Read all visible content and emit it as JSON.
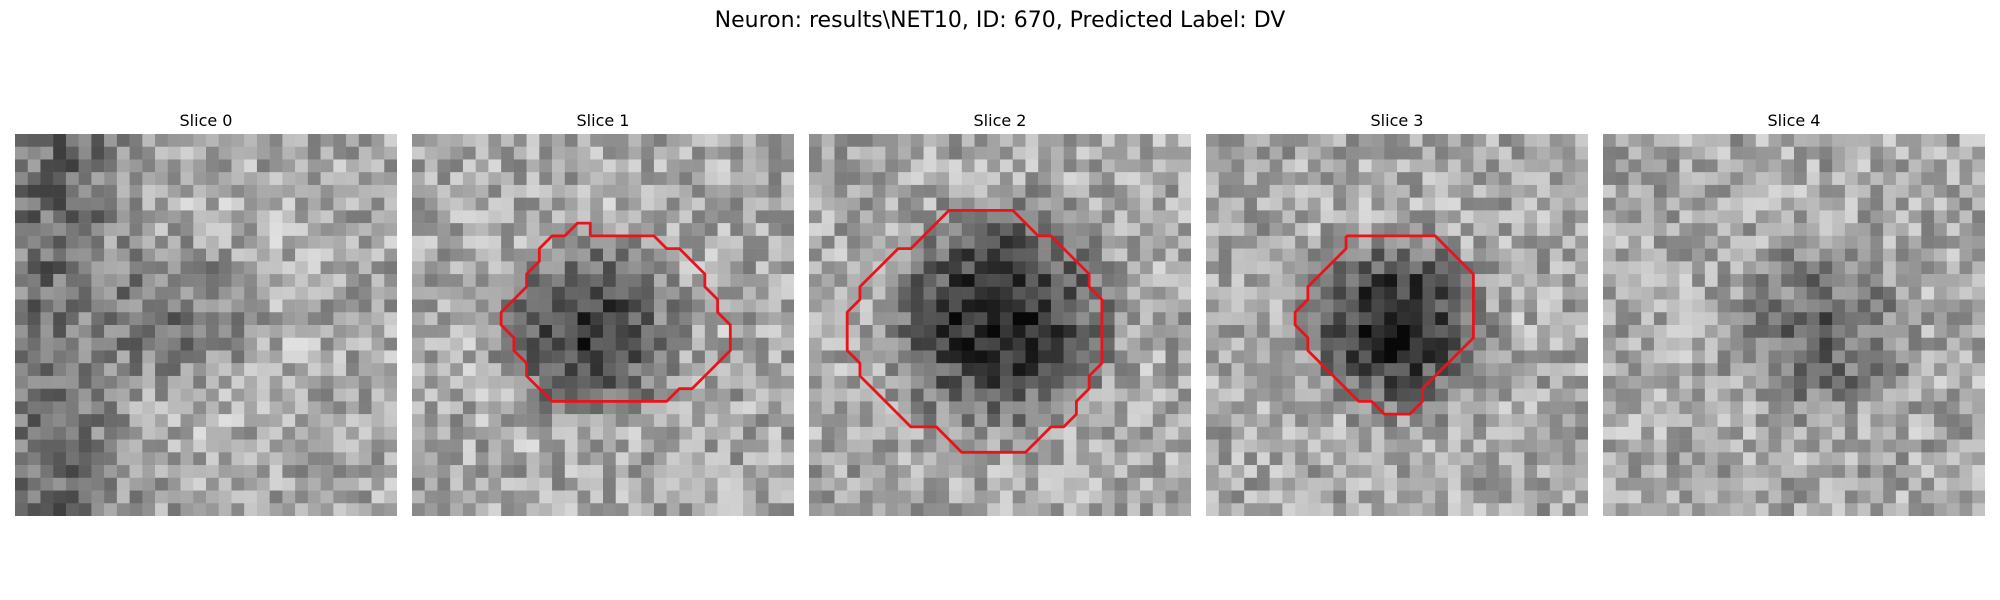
{
  "figure": {
    "title": "Neuron: results\\NET10, ID: 670, Predicted Label: DV"
  },
  "colors": {
    "contour": "#e8141c",
    "background": "#ffffff"
  },
  "slices": [
    {
      "title": "Slice 0",
      "seed": 11,
      "blob": [
        0.45,
        0.48,
        0.22,
        0.18,
        0.22
      ],
      "shadow_left": true,
      "contour": []
    },
    {
      "title": "Slice 1",
      "seed": 23,
      "blob": [
        0.47,
        0.52,
        0.24,
        0.45,
        0.26
      ],
      "shadow_left": false,
      "contour": [
        [
          14,
          8
        ],
        [
          19,
          8
        ],
        [
          20,
          9
        ],
        [
          21,
          9
        ],
        [
          22,
          10
        ],
        [
          23,
          11
        ],
        [
          23,
          12
        ],
        [
          24,
          13
        ],
        [
          24,
          14
        ],
        [
          25,
          15
        ],
        [
          25,
          16
        ],
        [
          25,
          17
        ],
        [
          24,
          18
        ],
        [
          23,
          19
        ],
        [
          22,
          20
        ],
        [
          21,
          20
        ],
        [
          20,
          21
        ],
        [
          19,
          21
        ],
        [
          18,
          21
        ],
        [
          17,
          21
        ],
        [
          16,
          21
        ],
        [
          15,
          21
        ],
        [
          14,
          21
        ],
        [
          13,
          21
        ],
        [
          12,
          21
        ],
        [
          11,
          21
        ],
        [
          10,
          20
        ],
        [
          9,
          19
        ],
        [
          9,
          18
        ],
        [
          8,
          17
        ],
        [
          8,
          16
        ],
        [
          7,
          15
        ],
        [
          7,
          14
        ],
        [
          8,
          13
        ],
        [
          9,
          12
        ],
        [
          9,
          11
        ],
        [
          10,
          10
        ],
        [
          10,
          9
        ],
        [
          11,
          8
        ],
        [
          12,
          8
        ],
        [
          13,
          7
        ],
        [
          14,
          7
        ],
        [
          14,
          8
        ]
      ]
    },
    {
      "title": "Slice 2",
      "seed": 37,
      "blob": [
        0.5,
        0.48,
        0.3,
        0.55,
        0.3
      ],
      "shadow_left": false,
      "contour": [
        [
          12,
          6
        ],
        [
          16,
          6
        ],
        [
          17,
          7
        ],
        [
          18,
          8
        ],
        [
          19,
          8
        ],
        [
          20,
          9
        ],
        [
          21,
          10
        ],
        [
          22,
          11
        ],
        [
          22,
          12
        ],
        [
          23,
          13
        ],
        [
          23,
          14
        ],
        [
          23,
          15
        ],
        [
          23,
          16
        ],
        [
          23,
          17
        ],
        [
          23,
          18
        ],
        [
          22,
          19
        ],
        [
          22,
          20
        ],
        [
          21,
          21
        ],
        [
          21,
          22
        ],
        [
          20,
          23
        ],
        [
          19,
          23
        ],
        [
          18,
          24
        ],
        [
          17,
          25
        ],
        [
          16,
          25
        ],
        [
          15,
          25
        ],
        [
          14,
          25
        ],
        [
          13,
          25
        ],
        [
          12,
          25
        ],
        [
          11,
          24
        ],
        [
          10,
          23
        ],
        [
          9,
          23
        ],
        [
          8,
          23
        ],
        [
          7,
          22
        ],
        [
          6,
          21
        ],
        [
          5,
          20
        ],
        [
          4,
          19
        ],
        [
          4,
          18
        ],
        [
          3,
          17
        ],
        [
          3,
          16
        ],
        [
          3,
          15
        ],
        [
          3,
          14
        ],
        [
          4,
          13
        ],
        [
          4,
          12
        ],
        [
          5,
          11
        ],
        [
          6,
          10
        ],
        [
          7,
          9
        ],
        [
          8,
          9
        ],
        [
          9,
          8
        ],
        [
          10,
          7
        ],
        [
          11,
          6
        ],
        [
          12,
          6
        ]
      ]
    },
    {
      "title": "Slice 3",
      "seed": 53,
      "blob": [
        0.5,
        0.5,
        0.24,
        0.55,
        0.26
      ],
      "shadow_left": false,
      "contour": [
        [
          11,
          8
        ],
        [
          18,
          8
        ],
        [
          19,
          9
        ],
        [
          20,
          10
        ],
        [
          21,
          11
        ],
        [
          21,
          12
        ],
        [
          21,
          13
        ],
        [
          21,
          14
        ],
        [
          21,
          15
        ],
        [
          21,
          16
        ],
        [
          20,
          17
        ],
        [
          19,
          18
        ],
        [
          18,
          19
        ],
        [
          17,
          20
        ],
        [
          17,
          21
        ],
        [
          16,
          22
        ],
        [
          15,
          22
        ],
        [
          14,
          22
        ],
        [
          13,
          21
        ],
        [
          12,
          21
        ],
        [
          11,
          20
        ],
        [
          10,
          19
        ],
        [
          9,
          18
        ],
        [
          8,
          17
        ],
        [
          8,
          16
        ],
        [
          7,
          15
        ],
        [
          7,
          14
        ],
        [
          8,
          13
        ],
        [
          8,
          12
        ],
        [
          9,
          11
        ],
        [
          10,
          10
        ],
        [
          11,
          9
        ],
        [
          11,
          8
        ]
      ]
    },
    {
      "title": "Slice 4",
      "seed": 71,
      "blob": [
        0.58,
        0.52,
        0.24,
        0.28,
        0.16
      ],
      "shadow_left": false,
      "contour": []
    }
  ]
}
